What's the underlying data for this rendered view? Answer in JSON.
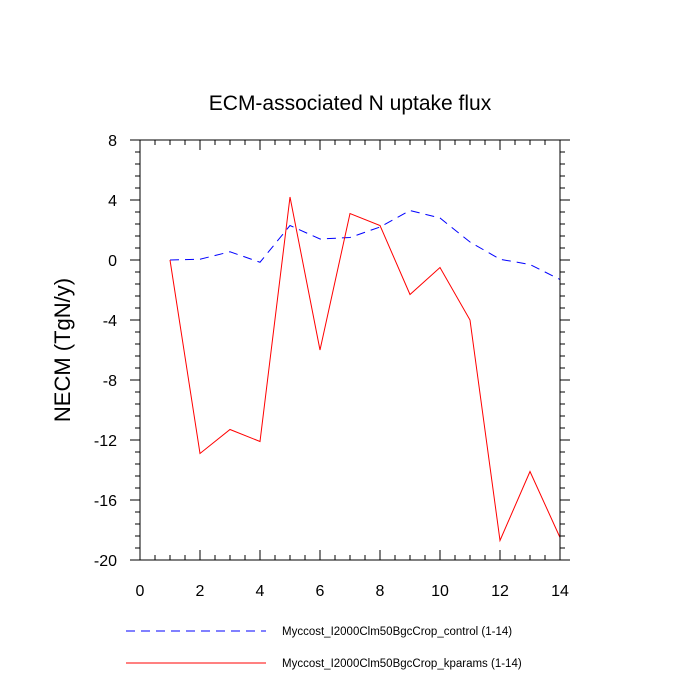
{
  "chart_data": {
    "type": "line",
    "title": "ECM-associated N uptake flux",
    "xlabel": "",
    "ylabel": "NECM  (TgN/y)",
    "xlim": [
      0,
      14
    ],
    "ylim": [
      -20,
      8
    ],
    "xticks": [
      0,
      2,
      4,
      6,
      8,
      10,
      12,
      14
    ],
    "yticks": [
      -20,
      -16,
      -12,
      -8,
      -4,
      0,
      4,
      8
    ],
    "x": [
      1,
      2,
      3,
      4,
      5,
      6,
      7,
      8,
      9,
      10,
      11,
      12,
      13,
      14
    ],
    "series": [
      {
        "name": "Myccost_I2000Clm50BgcCrop_control (1-14)",
        "color": "#0000ff",
        "style": "dashed",
        "values": [
          0.0,
          0.05,
          0.55,
          -0.15,
          2.3,
          1.4,
          1.5,
          2.2,
          3.3,
          2.8,
          1.2,
          0.05,
          -0.3,
          -1.3
        ]
      },
      {
        "name": "Myccost_I2000Clm50BgcCrop_kparams (1-14)",
        "color": "#ff0000",
        "style": "solid",
        "values": [
          0.0,
          -12.9,
          -11.3,
          -12.1,
          4.2,
          -6.0,
          3.1,
          2.3,
          -2.3,
          -0.5,
          -4.0,
          -18.7,
          -14.1,
          -18.5
        ]
      }
    ]
  }
}
